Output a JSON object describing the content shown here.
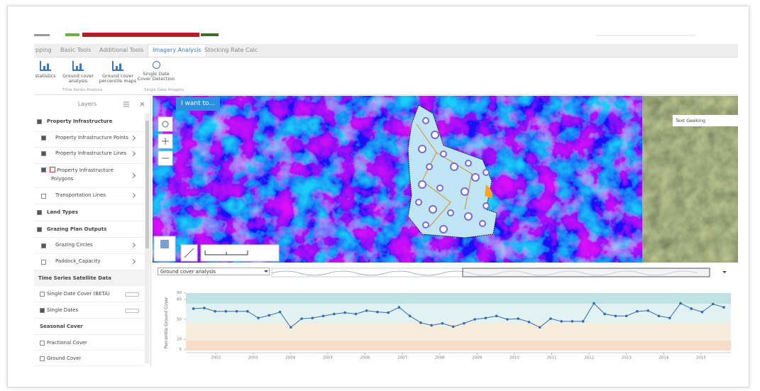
{
  "tabs": [
    "pping",
    "Basic Tools",
    "Additional Tools",
    "Imagery Analysis",
    "Stocking Rate Calc"
  ],
  "ribbon": {
    "buttons": [
      "statistics",
      "Ground cover analysis",
      "Ground cover percentile maps",
      "Single Date Cover Detection"
    ],
    "groups": [
      "Time Series Analysis",
      "Single Date Imagery"
    ]
  },
  "layers": {
    "title": "Layers",
    "items": [
      "Property Infrastructure",
      "Property Infrastructure Points",
      "Property Infrastructure Lines",
      "Property Infrastructure Polygons",
      "Transportation Lines",
      "Land Types",
      "Grazing Plan Outputs",
      "Grazing Circles",
      "Paddock_Capacity",
      "Time Series Satellite Data",
      "Single Date Cover (BETA)",
      "Single Dates",
      "Seasonal Cover",
      "Fractional Cover",
      "Ground Cover"
    ]
  },
  "map": {
    "button": "I want to...",
    "overlay": "Text Geeking"
  },
  "dropdown": "Ground cover analysis",
  "chart_data": {
    "type": "line",
    "y_label": "Percentile Ground Cover",
    "x": [
      2001.4,
      2001.69,
      2001.98,
      2002.27,
      2002.56,
      2002.85,
      2003.14,
      2003.43,
      2003.72,
      2004.01,
      2004.3,
      2004.59,
      2004.88,
      2005.17,
      2005.46,
      2005.75,
      2006.04,
      2006.33,
      2006.62,
      2006.91,
      2007.2,
      2007.49,
      2007.78,
      2008.07,
      2008.36,
      2008.65,
      2008.94,
      2009.23,
      2009.52,
      2009.81,
      2010.1,
      2010.39,
      2010.68,
      2010.97,
      2011.26,
      2011.55,
      2011.84,
      2012.13,
      2012.42,
      2012.71,
      2013.0,
      2013.29,
      2013.58,
      2013.87,
      2014.16,
      2014.45,
      2014.74,
      2015.03,
      2015.32,
      2015.61
    ],
    "series": [
      {
        "color": "#2f6db5",
        "values": [
          66,
          67,
          62,
          62,
          62,
          62,
          52,
          56,
          61,
          38,
          51,
          52,
          55,
          58,
          60,
          58,
          63,
          61,
          60,
          68,
          55,
          45,
          41,
          44,
          39,
          44,
          50,
          52,
          55,
          50,
          51,
          46,
          38,
          51,
          47,
          47,
          47,
          74,
          58,
          55,
          55,
          62,
          63,
          55,
          52,
          74,
          66,
          61,
          73,
          68
        ]
      }
    ],
    "xlim": [
      2001.2,
      2015.8
    ],
    "xticks": [
      2002,
      2003,
      2004,
      2005,
      2006,
      2007,
      2008,
      2009,
      2010,
      2011,
      2012,
      2013,
      2014,
      2015
    ],
    "ylim": [
      0,
      100
    ],
    "yticks": [
      5,
      20,
      50,
      80,
      90
    ]
  }
}
